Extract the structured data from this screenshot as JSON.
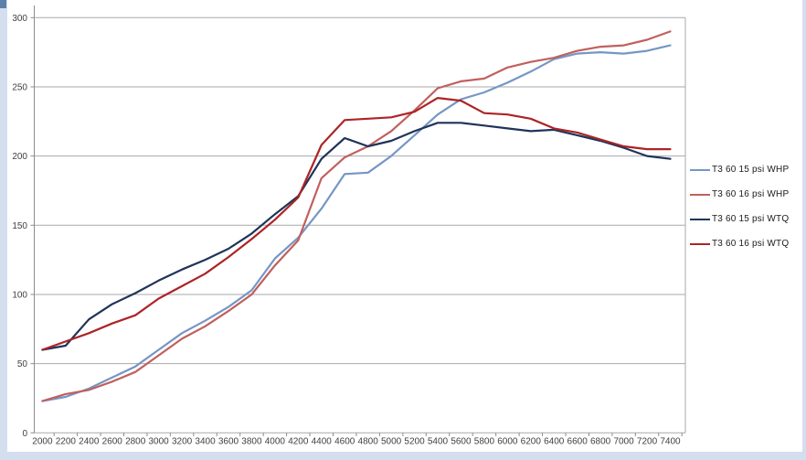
{
  "page": {
    "background_strip_color": "#d3dfef",
    "plot_background": "#ffffff"
  },
  "chart_data": {
    "type": "line",
    "title": "",
    "xlabel": "",
    "ylabel": "",
    "x": [
      2000,
      2200,
      2400,
      2600,
      2800,
      3000,
      3200,
      3400,
      3600,
      3800,
      4000,
      4200,
      4400,
      4600,
      4800,
      5000,
      5200,
      5400,
      5600,
      5800,
      6000,
      6200,
      6400,
      6600,
      6800,
      7000,
      7200,
      7400
    ],
    "yticks": [
      0,
      50,
      100,
      150,
      200,
      250,
      300
    ],
    "ylim": [
      0,
      300
    ],
    "ytick_step": 50,
    "grid": "horizontal",
    "legend_position": "right",
    "series": [
      {
        "name": "T3 60 15 psi WHP",
        "color": "#7596C5",
        "values": [
          23,
          26,
          32,
          40,
          48,
          60,
          72,
          81,
          91,
          103,
          126,
          141,
          162,
          187,
          188,
          200,
          215,
          230,
          241,
          246,
          253,
          261,
          270,
          274,
          275,
          274,
          276,
          280
        ]
      },
      {
        "name": "T3 60 16 psi WHP",
        "color": "#C0605E",
        "values": [
          23,
          28,
          31,
          37,
          44,
          56,
          68,
          77,
          88,
          100,
          121,
          139,
          184,
          199,
          207,
          218,
          233,
          249,
          254,
          256,
          264,
          268,
          271,
          276,
          279,
          280,
          284,
          290
        ]
      },
      {
        "name": "T3 60 15 psi WTQ",
        "color": "#1F3459",
        "values": [
          60,
          63,
          82,
          93,
          101,
          110,
          118,
          125,
          133,
          144,
          158,
          171,
          198,
          213,
          207,
          211,
          218,
          224,
          224,
          222,
          220,
          218,
          219,
          215,
          211,
          206,
          200,
          198
        ]
      },
      {
        "name": "T3 60 16 psi WTQ",
        "color": "#AC2426",
        "values": [
          60,
          66,
          72,
          79,
          85,
          97,
          106,
          115,
          127,
          140,
          154,
          170,
          208,
          226,
          227,
          228,
          232,
          242,
          240,
          231,
          230,
          227,
          220,
          217,
          212,
          207,
          205,
          205
        ]
      }
    ]
  },
  "style_colors": {
    "gridline": "#A9A9A9",
    "axis_line": "#8C8C8C",
    "tick_label": "#3F3F3F",
    "legend_text": "#1A1A1A"
  }
}
